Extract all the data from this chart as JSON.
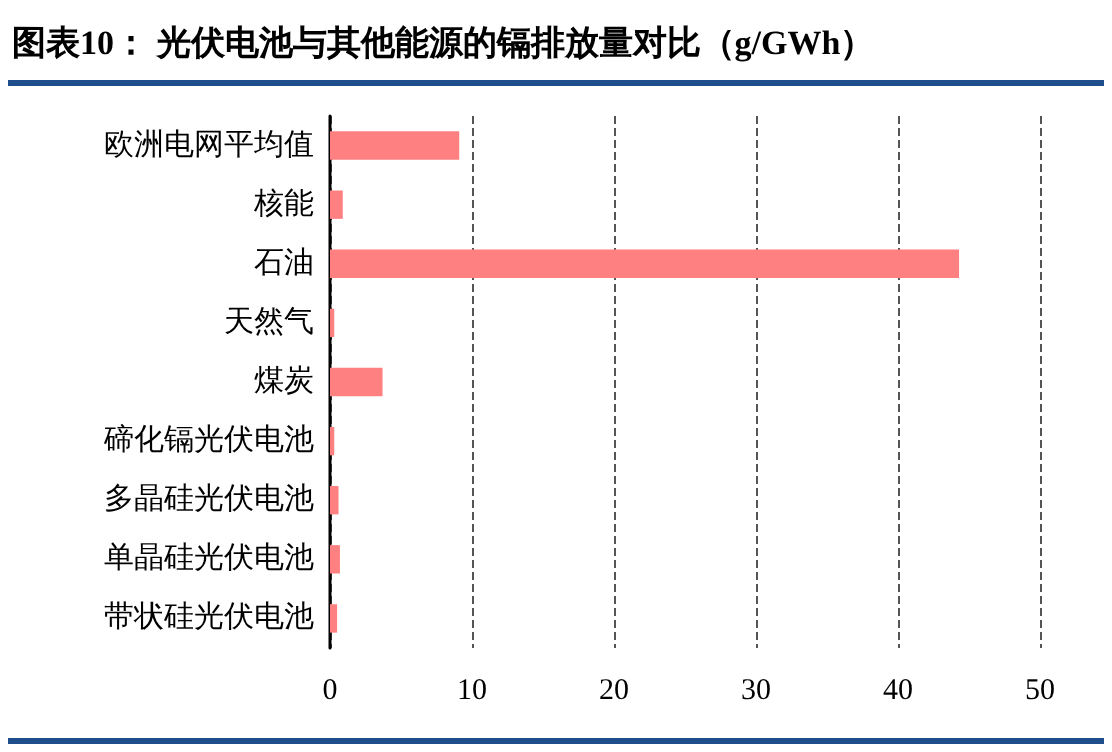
{
  "chart_data": {
    "type": "bar",
    "orientation": "horizontal",
    "title": "图表10：  光伏电池与其他能源的镉排放量对比（g/GWh）",
    "categories": [
      "欧洲电网平均值",
      "核能",
      "石油",
      "天然气",
      "煤炭",
      "碲化镉光伏电池",
      "多晶硅光伏电池",
      "单晶硅光伏电池",
      "带状硅光伏电池"
    ],
    "values": [
      9.1,
      0.9,
      44.3,
      0.3,
      3.7,
      0.3,
      0.6,
      0.7,
      0.5
    ],
    "color": "#ff8080",
    "xlim": [
      0,
      50
    ],
    "xticks": [
      0,
      10,
      20,
      30,
      40,
      50
    ],
    "grid": "x",
    "line_style": "dashed"
  }
}
